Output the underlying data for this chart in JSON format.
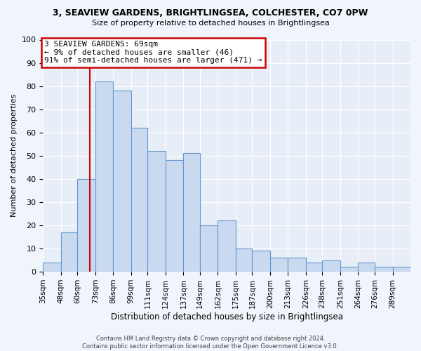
{
  "title": "3, SEAVIEW GARDENS, BRIGHTLINGSEA, COLCHESTER, CO7 0PW",
  "subtitle": "Size of property relative to detached houses in Brightlingsea",
  "xlabel": "Distribution of detached houses by size in Brightlingsea",
  "ylabel": "Number of detached properties",
  "bar_labels": [
    "35sqm",
    "48sqm",
    "60sqm",
    "73sqm",
    "86sqm",
    "99sqm",
    "111sqm",
    "124sqm",
    "137sqm",
    "149sqm",
    "162sqm",
    "175sqm",
    "187sqm",
    "200sqm",
    "213sqm",
    "226sqm",
    "238sqm",
    "251sqm",
    "264sqm",
    "276sqm",
    "289sqm"
  ],
  "bar_values": [
    4,
    17,
    40,
    82,
    78,
    62,
    52,
    48,
    51,
    20,
    22,
    10,
    9,
    6,
    6,
    4,
    5,
    2,
    4,
    2,
    2
  ],
  "bar_color": "#c9d9f0",
  "bar_edge_color": "#6699cc",
  "ylim": [
    0,
    100
  ],
  "property_line_x": 69,
  "property_line_label": "3 SEAVIEW GARDENS: 69sqm",
  "annotation_line1": "← 9% of detached houses are smaller (46)",
  "annotation_line2": "91% of semi-detached houses are larger (471) →",
  "annotation_box_color": "#cc0000",
  "property_line_color": "#cc0000",
  "bin_edges": [
    35,
    48,
    60,
    73,
    86,
    99,
    111,
    124,
    137,
    149,
    162,
    175,
    187,
    200,
    213,
    226,
    238,
    251,
    264,
    276,
    289,
    302
  ],
  "footer_line1": "Contains HM Land Registry data © Crown copyright and database right 2024.",
  "footer_line2": "Contains public sector information licensed under the Open Government Licence v3.0.",
  "background_color": "#f0f4fb",
  "plot_bg_color": "#e8eef8"
}
